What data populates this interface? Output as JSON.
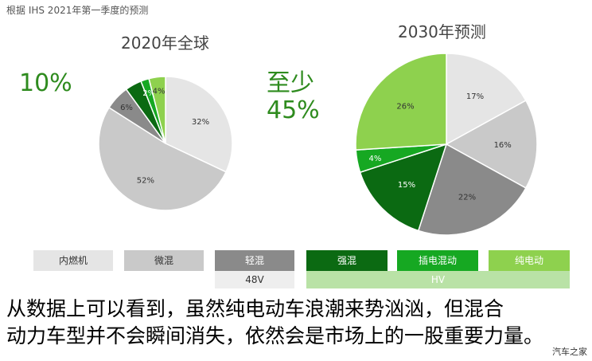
{
  "source_note": "根据 IHS 2021年第一季度的预测",
  "annotations": {
    "left_percent": "10%",
    "right_line1": "至少",
    "right_line2": "45%"
  },
  "colors": {
    "ice": "#e5e5e5",
    "mild": "#c9c9c9",
    "light": "#8a8a8a",
    "strong": "#0b6a12",
    "phev": "#16a822",
    "bev": "#8ed14e",
    "green_text": "#2e8b1e"
  },
  "chart_data": [
    {
      "type": "pie",
      "title": "2020年全球",
      "categories": [
        "内燃机",
        "微混",
        "轻混",
        "强混",
        "插电混动",
        "纯电动"
      ],
      "values": [
        32,
        52,
        6,
        4,
        2,
        4
      ],
      "labels": [
        "32%",
        "52%",
        "6%",
        "",
        "2%",
        "4%"
      ]
    },
    {
      "type": "pie",
      "title": "2030年预测",
      "categories": [
        "内燃机",
        "微混",
        "轻混",
        "强混",
        "插电混动",
        "纯电动"
      ],
      "values": [
        17,
        16,
        22,
        15,
        4,
        26
      ],
      "labels": [
        "17%",
        "16%",
        "22%",
        "15%",
        "4%",
        "26%"
      ]
    }
  ],
  "legend": {
    "items": [
      {
        "label": "内燃机",
        "color": "#e5e5e5",
        "text_color": "#333333"
      },
      {
        "label": "微混",
        "color": "#c9c9c9",
        "text_color": "#333333"
      },
      {
        "label": "轻混",
        "color": "#8a8a8a",
        "text_color": "#ffffff"
      },
      {
        "label": "强混",
        "color": "#0b6a12",
        "text_color": "#ffffff"
      },
      {
        "label": "插电混动",
        "color": "#16a822",
        "text_color": "#ffffff"
      },
      {
        "label": "纯电动",
        "color": "#8ed14e",
        "text_color": "#ffffff"
      }
    ],
    "groups": [
      {
        "label": "48V",
        "color": "#eeeeee",
        "text_color": "#333333"
      },
      {
        "label": "HV",
        "color": "#b9e2a6",
        "text_color": "#ffffff"
      }
    ]
  },
  "caption": {
    "line1": "从数据上可以看到，虽然纯电动车浪潮来势汹汹，但混合",
    "line2": "动力车型并不会瞬间消失，依然会是市场上的一股重要力量。"
  },
  "watermark": "汽车之家"
}
